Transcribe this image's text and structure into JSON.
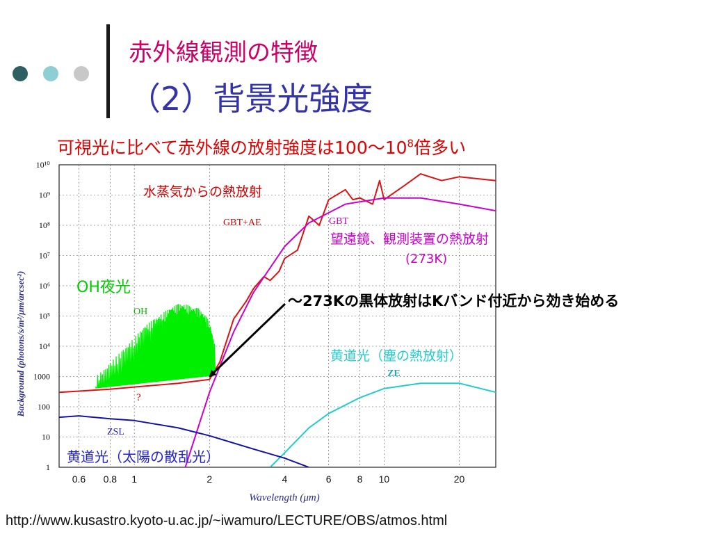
{
  "slide": {
    "title_line1": "赤外線観測の特徴",
    "title_line2": "（2）背景光強度",
    "subheading_pre": "可視光に比べて赤外線の放射強度は100〜10",
    "subheading_sup": "8",
    "subheading_post": "倍多い",
    "footer_url": "http://www.kusastro.kyoto-u.ac.jp/~iwamuro/LECTURE/OBS/atmos.html",
    "dot_colors": [
      "#2e5f63",
      "#8ecfd6",
      "#c8c8c8"
    ]
  },
  "chart_data": {
    "type": "line",
    "xlabel": "Wavelength (μm)",
    "ylabel": "Background (photons/s/m²/μm/arcsec²)",
    "x_scale": "log",
    "y_scale": "log",
    "xlim": [
      0.5,
      28
    ],
    "ylim": [
      1,
      10000000000
    ],
    "x_ticks": [
      {
        "v": 0.6,
        "label": "0.6"
      },
      {
        "v": 0.8,
        "label": "0.8"
      },
      {
        "v": 1,
        "label": "1"
      },
      {
        "v": 2,
        "label": "2"
      },
      {
        "v": 4,
        "label": "4"
      },
      {
        "v": 6,
        "label": "6"
      },
      {
        "v": 8,
        "label": "8"
      },
      {
        "v": 10,
        "label": "10"
      },
      {
        "v": 20,
        "label": "20"
      }
    ],
    "y_ticks": [
      {
        "v": 1,
        "label": "1"
      },
      {
        "v": 10,
        "label": "10"
      },
      {
        "v": 100,
        "label": "100"
      },
      {
        "v": 1000,
        "label": "1000"
      },
      {
        "v": 10000,
        "label": "10⁴"
      },
      {
        "v": 100000,
        "label": "10⁵"
      },
      {
        "v": 1000000,
        "label": "10⁶"
      },
      {
        "v": 10000000,
        "label": "10⁷"
      },
      {
        "v": 100000000,
        "label": "10⁸"
      },
      {
        "v": 1000000000,
        "label": "10⁹"
      },
      {
        "v": 10000000000,
        "label": "10¹⁰"
      }
    ],
    "series": [
      {
        "name": "GBT+AE",
        "color": "#dd1111",
        "x": [
          0.5,
          0.8,
          1.0,
          1.5,
          2.0,
          2.2,
          2.5,
          2.8,
          3.0,
          3.3,
          3.5,
          3.8,
          4.0,
          4.5,
          5.0,
          5.5,
          6.0,
          7.0,
          7.5,
          8.0,
          9.0,
          9.6,
          10,
          12,
          14,
          17,
          20,
          28
        ],
        "y": [
          300,
          380,
          450,
          600,
          800,
          3000,
          80000,
          300000,
          800000,
          2000000,
          1500000,
          3000000,
          8000000,
          15000000,
          200000000,
          100000000,
          700000000,
          1500000000,
          700000000,
          800000000,
          500000000,
          3000000000,
          700000000,
          2000000000,
          5000000000,
          3000000000,
          4000000000,
          3000000000
        ]
      },
      {
        "name": "GBT",
        "color": "#cc00cc",
        "x": [
          1.0,
          1.6,
          2.0,
          2.5,
          3.0,
          4.0,
          5.0,
          7.0,
          10,
          14,
          20,
          28
        ],
        "y": [
          0.01,
          1,
          300,
          30000,
          600000,
          20000000,
          120000000,
          500000000,
          800000000,
          800000000,
          500000000,
          300000000
        ]
      },
      {
        "name": "OH",
        "color": "#00ee00",
        "x": [
          0.7,
          0.8,
          0.9,
          1.0,
          1.1,
          1.2,
          1.3,
          1.4,
          1.5,
          1.6,
          1.7,
          1.8,
          1.9,
          2.0,
          2.1
        ],
        "y": [
          1000,
          3000,
          8000,
          20000,
          50000,
          80000,
          130000,
          200000,
          250000,
          250000,
          200000,
          180000,
          120000,
          60000,
          10000
        ]
      },
      {
        "name": "ZE",
        "color": "#22cccc",
        "x": [
          3.5,
          4.0,
          5.0,
          6.0,
          8.0,
          10,
          14,
          20,
          28
        ],
        "y": [
          1,
          3,
          20,
          60,
          200,
          400,
          600,
          600,
          300
        ]
      },
      {
        "name": "ZSL",
        "color": "#1111aa",
        "x": [
          0.5,
          0.6,
          0.8,
          1.0,
          1.5,
          2.0,
          3.0,
          4.0,
          5.0
        ],
        "y": [
          45,
          50,
          40,
          35,
          20,
          11,
          4,
          2,
          1
        ]
      }
    ],
    "annotations": [
      {
        "text": "水蒸気からの熱放射",
        "color": "#cc0000"
      },
      {
        "text": "GBT+AE",
        "color": "#cc0000"
      },
      {
        "text": "GBT",
        "color": "#cc00cc"
      },
      {
        "text": "望遠鏡、観測装置の熱放射",
        "color": "#cc00cc"
      },
      {
        "text": "(273K)",
        "color": "#cc00cc"
      },
      {
        "text": "OH夜光",
        "color": "#00cc00"
      },
      {
        "text": "OH",
        "color": "#00bb00"
      },
      {
        "text": "〜273Kの黒体放射はKバンド付近から効き始める",
        "color": "#000000"
      },
      {
        "text": "黄道光（塵の熱放射）",
        "color": "#22cccc"
      },
      {
        "text": "ZE",
        "color": "#22aaaa"
      },
      {
        "text": "?",
        "color": "#cc0000"
      },
      {
        "text": "ZSL",
        "color": "#2222aa"
      },
      {
        "text": "黄道光（太陽の散乱光）",
        "color": "#2222cc"
      }
    ],
    "grid": true
  }
}
